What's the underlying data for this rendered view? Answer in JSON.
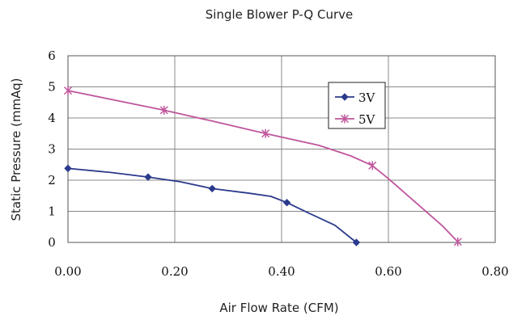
{
  "chart_data": {
    "type": "line",
    "title": "Single Blower P-Q Curve",
    "xlabel": "Air Flow Rate (CFM)",
    "ylabel": "Static Pressure (mmAq)",
    "xlim": [
      0,
      0.8
    ],
    "ylim": [
      0,
      6
    ],
    "x_ticks": [
      "0.00",
      "0.20",
      "0.40",
      "0.60",
      "0.80"
    ],
    "x_tick_values": [
      0,
      0.2,
      0.4,
      0.6,
      0.8
    ],
    "y_ticks": [
      "0",
      "1",
      "2",
      "3",
      "4",
      "5",
      "6"
    ],
    "y_tick_values": [
      0,
      1,
      2,
      3,
      4,
      5,
      6
    ],
    "grid": true,
    "legend_position": "upper-right",
    "series": [
      {
        "name": "3V",
        "color": "#2b3a8c",
        "marker": "diamond",
        "markers": [
          [
            0.0,
            2.38
          ],
          [
            0.15,
            2.1
          ],
          [
            0.27,
            1.73
          ],
          [
            0.41,
            1.28
          ],
          [
            0.54,
            0.0
          ]
        ],
        "curve": [
          [
            0.0,
            2.38
          ],
          [
            0.08,
            2.25
          ],
          [
            0.15,
            2.1
          ],
          [
            0.21,
            1.95
          ],
          [
            0.27,
            1.73
          ],
          [
            0.34,
            1.58
          ],
          [
            0.38,
            1.48
          ],
          [
            0.41,
            1.28
          ],
          [
            0.45,
            0.95
          ],
          [
            0.5,
            0.55
          ],
          [
            0.54,
            0.0
          ]
        ]
      },
      {
        "name": "5V",
        "color": "#c0569c",
        "marker": "asterisk",
        "markers": [
          [
            0.0,
            4.88
          ],
          [
            0.18,
            4.25
          ],
          [
            0.37,
            3.5
          ],
          [
            0.57,
            2.47
          ],
          [
            0.73,
            0.02
          ]
        ],
        "curve": [
          [
            0.0,
            4.88
          ],
          [
            0.08,
            4.6
          ],
          [
            0.18,
            4.25
          ],
          [
            0.27,
            3.9
          ],
          [
            0.37,
            3.5
          ],
          [
            0.47,
            3.12
          ],
          [
            0.53,
            2.78
          ],
          [
            0.57,
            2.47
          ],
          [
            0.6,
            2.05
          ],
          [
            0.65,
            1.3
          ],
          [
            0.7,
            0.55
          ],
          [
            0.73,
            0.02
          ]
        ]
      }
    ]
  }
}
